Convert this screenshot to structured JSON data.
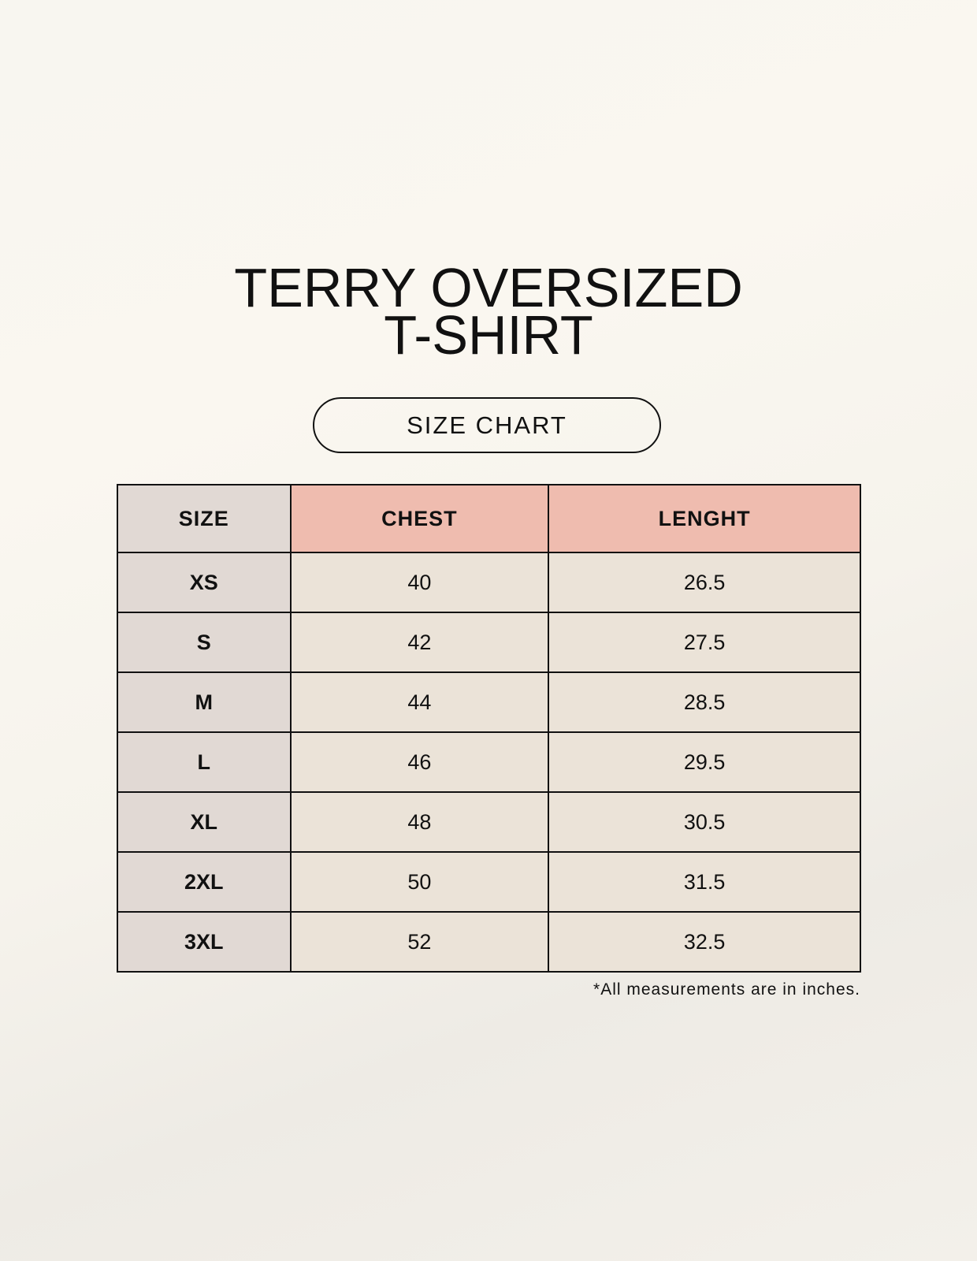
{
  "title": {
    "line1": "TERRY OVERSIZED",
    "line2": "T-SHIRT"
  },
  "badge": "SIZE CHART",
  "table": {
    "headers": [
      "SIZE",
      "CHEST",
      "LENGHT"
    ],
    "rows": [
      [
        "XS",
        "40",
        "26.5"
      ],
      [
        "S",
        "42",
        "27.5"
      ],
      [
        "M",
        "44",
        "28.5"
      ],
      [
        "L",
        "46",
        "29.5"
      ],
      [
        "XL",
        "48",
        "30.5"
      ],
      [
        "2XL",
        "50",
        "31.5"
      ],
      [
        "3XL",
        "52",
        "32.5"
      ]
    ]
  },
  "note": "*All measurements are in inches.",
  "colors": {
    "header_accent": "#efbcaf",
    "size_column": "#e1d9d4",
    "value_cells": "#ebe3d8"
  }
}
